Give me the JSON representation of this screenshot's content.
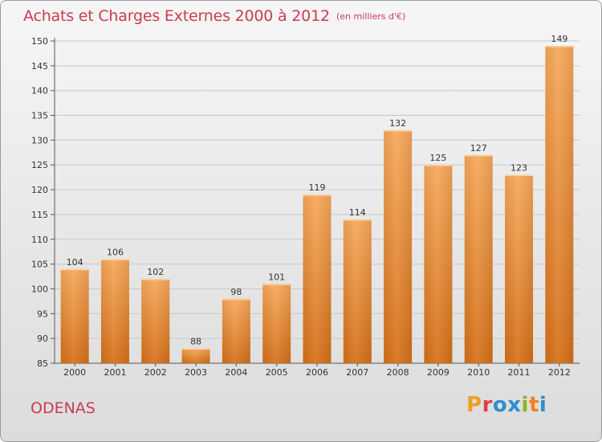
{
  "title": "Achats et Charges Externes 2000 à 2012",
  "subtitle": "(en milliers d'€)",
  "city": "ODENAS",
  "logo": {
    "letters": [
      "P",
      "r",
      "o",
      "x",
      "i",
      "t",
      "i"
    ],
    "colors": [
      "#f0a020",
      "#e04040",
      "#2d8fd0",
      "#2d8fd0",
      "#88b820",
      "#f08020",
      "#2d8fd0"
    ]
  },
  "colors": {
    "accent": "#c93c50",
    "bar_light": "#f5a550",
    "bar_dark": "#d77420"
  },
  "chart_data": {
    "type": "bar",
    "title": "Achats et Charges Externes 2000 à 2012",
    "subtitle": "(en milliers d'€)",
    "categories": [
      "2000",
      "2001",
      "2002",
      "2003",
      "2004",
      "2005",
      "2006",
      "2007",
      "2008",
      "2009",
      "2010",
      "2011",
      "2012"
    ],
    "values": [
      104,
      106,
      102,
      88,
      98,
      101,
      119,
      114,
      132,
      125,
      127,
      123,
      149
    ],
    "xlabel": "",
    "ylabel": "",
    "ylim": [
      85,
      150
    ],
    "yticks": [
      85,
      90,
      95,
      100,
      105,
      110,
      115,
      120,
      125,
      130,
      135,
      140,
      145,
      150
    ],
    "grid": "horizontal",
    "legend": "none"
  }
}
